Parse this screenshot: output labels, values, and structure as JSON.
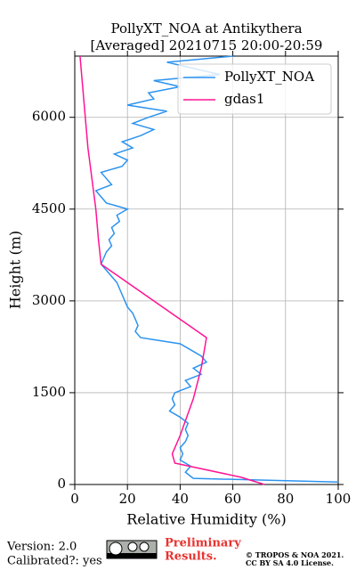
{
  "chart_data": {
    "type": "line",
    "title": [
      "PollyXT_NOA at Antikythera",
      "[Averaged] 20210715 20:00-20:59"
    ],
    "x_label": "Relative Humidity (%)",
    "y_label": "Height (m)",
    "xlim": [
      0,
      100
    ],
    "ylim": [
      0,
      7000
    ],
    "xticks": [
      0,
      20,
      40,
      60,
      80,
      100
    ],
    "yticks": [
      0,
      1500,
      3000,
      4500,
      6000
    ],
    "grid": true,
    "legend": "upper right",
    "series": [
      {
        "name": "PollyXT_NOA",
        "color": "#2b93f0",
        "values": [
          100,
          45,
          42,
          44,
          40,
          41,
          40,
          42,
          43,
          42,
          43,
          40,
          36,
          38,
          37,
          38,
          44,
          42,
          48,
          45,
          50,
          48,
          44,
          40,
          25,
          23,
          24,
          23,
          22,
          20,
          19,
          18,
          17,
          16,
          14,
          12,
          10,
          11,
          12,
          14,
          13,
          15,
          14,
          17,
          16,
          20,
          12,
          10,
          8,
          14,
          12,
          10,
          18,
          20,
          15,
          22,
          18,
          25,
          30,
          22,
          28,
          35,
          20,
          30,
          28,
          40,
          30,
          55,
          45,
          35,
          60
        ],
        "heights": [
          40,
          100,
          200,
          300,
          400,
          500,
          600,
          700,
          800,
          900,
          1000,
          1100,
          1200,
          1300,
          1400,
          1500,
          1600,
          1700,
          1800,
          1900,
          2000,
          2100,
          2200,
          2300,
          2400,
          2500,
          2600,
          2700,
          2800,
          2900,
          3000,
          3100,
          3200,
          3300,
          3400,
          3500,
          3600,
          3700,
          3800,
          3900,
          4000,
          4100,
          4200,
          4300,
          4400,
          4500,
          4600,
          4700,
          4800,
          4900,
          5000,
          5100,
          5200,
          5300,
          5400,
          5500,
          5600,
          5700,
          5800,
          5900,
          6000,
          6100,
          6200,
          6300,
          6400,
          6500,
          6600,
          6700,
          6800,
          6900,
          7000
        ]
      },
      {
        "name": "gdas1",
        "color": "#ff1493",
        "values": [
          72,
          63,
          38,
          37,
          40,
          45,
          48,
          50,
          10,
          9,
          8,
          5,
          3,
          2
        ],
        "heights": [
          0,
          120,
          350,
          500,
          800,
          1400,
          1900,
          2400,
          3600,
          4000,
          4500,
          5500,
          6500,
          7000
        ]
      }
    ]
  },
  "footer": {
    "version": "Version: 2.0",
    "calibrated": "Calibrated?: yes",
    "preliminary": [
      "Preliminary",
      "Results."
    ],
    "license": [
      "© TROPOS & NOA 2021.",
      "CC BY SA 4.0 License."
    ]
  }
}
